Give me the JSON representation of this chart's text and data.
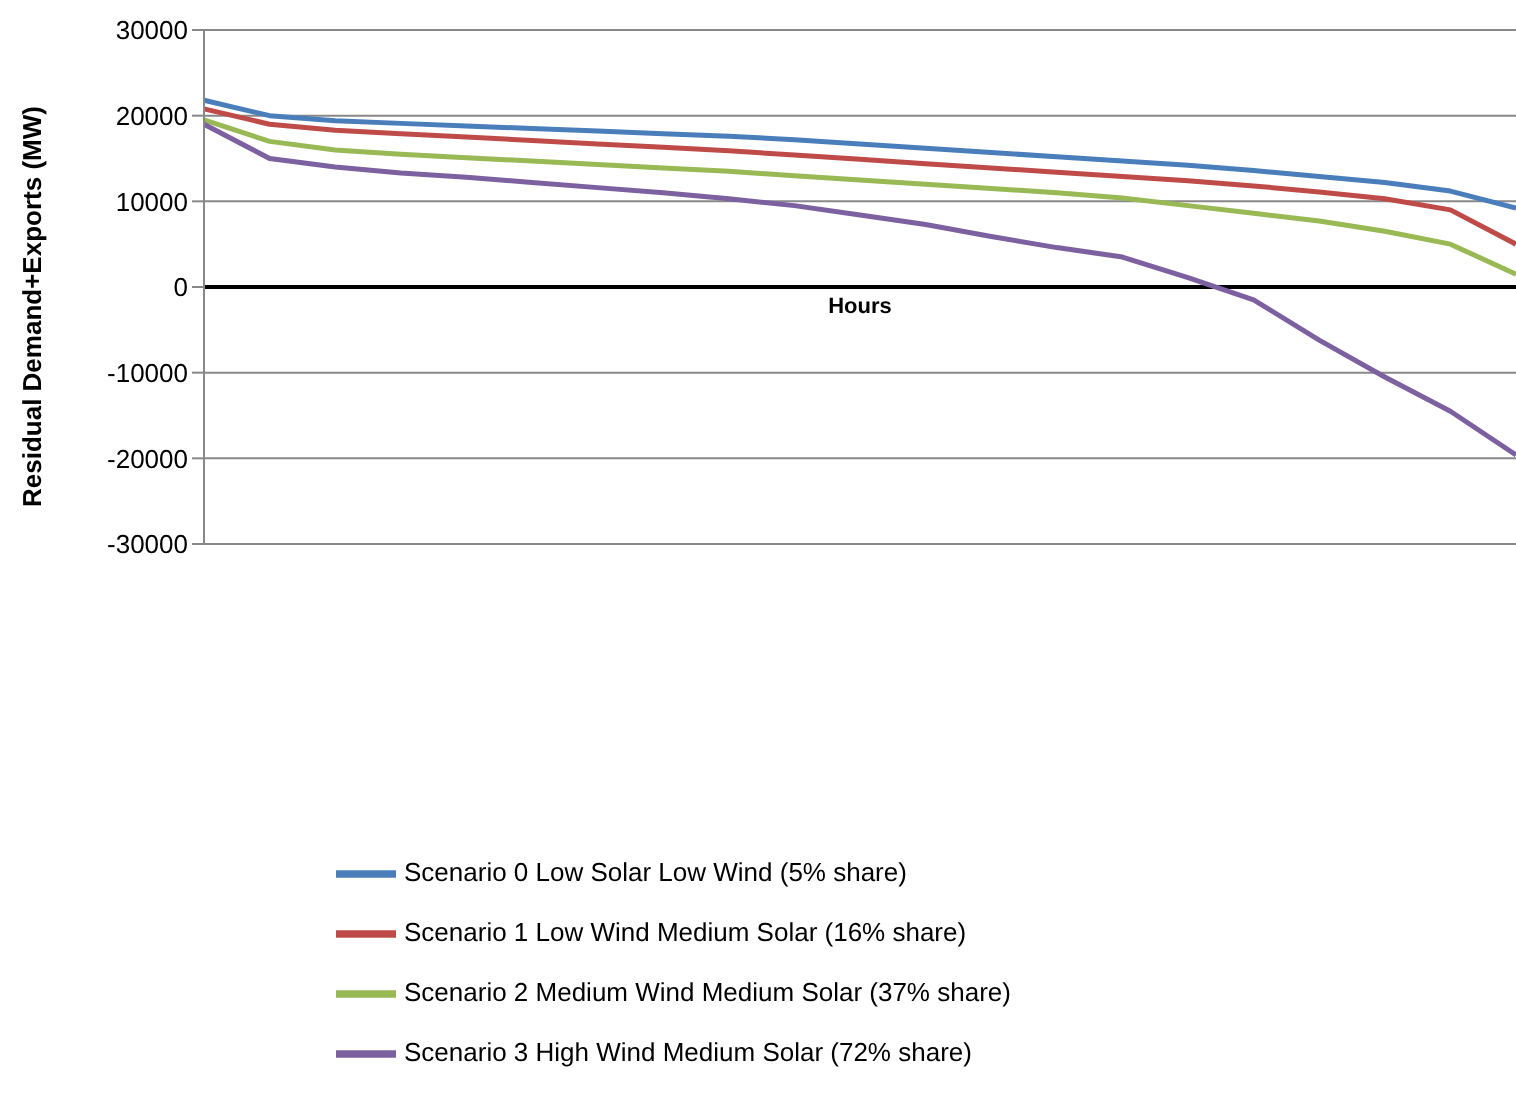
{
  "chart_data": {
    "type": "line",
    "xlabel": "Hours",
    "ylabel": "Residual Demand+Exports (MW)",
    "categories": [
      null,
      null,
      null,
      null,
      null,
      null,
      null,
      null,
      null,
      null,
      null,
      null,
      null,
      null,
      null,
      null,
      null,
      null,
      null,
      null,
      null
    ],
    "series": [
      {
        "name": "Scenario 0 Low Solar Low Wind (5% share)",
        "color": "#4a7ebb",
        "values": [
          21800,
          20000,
          19400,
          19100,
          18800,
          18500,
          18200,
          17900,
          17600,
          17200,
          16700,
          16200,
          15700,
          15200,
          14700,
          14200,
          13600,
          12900,
          12200,
          11200,
          9200
        ]
      },
      {
        "name": "Scenario 1 Low Wind Medium Solar (16% share)",
        "color": "#be4b48",
        "values": [
          20800,
          19000,
          18300,
          17900,
          17500,
          17100,
          16700,
          16300,
          15900,
          15400,
          14900,
          14400,
          13900,
          13400,
          12900,
          12400,
          11800,
          11100,
          10300,
          9000,
          5000
        ]
      },
      {
        "name": "Scenario 2 Medium Wind Medium Solar (37% share)",
        "color": "#98b954",
        "values": [
          19500,
          17000,
          16000,
          15500,
          15100,
          14700,
          14300,
          13900,
          13500,
          13000,
          12500,
          12000,
          11500,
          11000,
          10400,
          9500,
          8600,
          7700,
          6500,
          5000,
          1500
        ]
      },
      {
        "name": "Scenario 3 High Wind Medium Solar (72% share)",
        "color": "#7d60a0",
        "values": [
          19000,
          15000,
          14000,
          13300,
          12800,
          12200,
          11600,
          11000,
          10300,
          9500,
          8400,
          7300,
          5900,
          4600,
          3500,
          1100,
          -1500,
          -6200,
          -10500,
          -14500,
          -19600
        ]
      }
    ],
    "ylim": [
      -30000,
      30000
    ],
    "yticks": [
      -30000,
      -20000,
      -10000,
      0,
      10000,
      20000,
      30000
    ],
    "grid": "y",
    "legend": "bottom",
    "marker": "none",
    "line_style": "solid",
    "tick_labels": "y",
    "ref_lines": [
      {
        "axis": "y",
        "value": 0,
        "color": "#000000"
      }
    ]
  }
}
